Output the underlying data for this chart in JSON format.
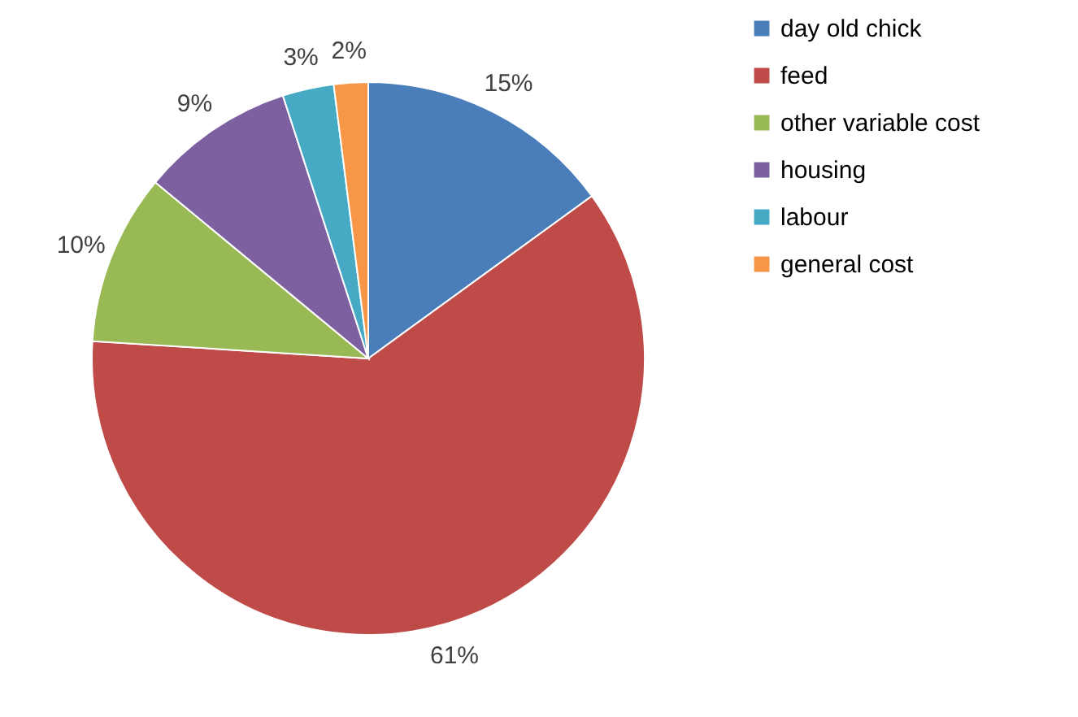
{
  "chart_data": {
    "type": "pie",
    "categories": [
      "day old chick",
      "feed",
      "other variable cost",
      "housing",
      "labour",
      "general cost"
    ],
    "values": [
      15,
      61,
      10,
      9,
      3,
      2
    ],
    "colors": [
      "#4a7ebb",
      "#be4b48",
      "#98b954",
      "#7d60a0",
      "#46aac5",
      "#f79646"
    ],
    "value_labels": [
      "15%",
      "61%",
      "10%",
      "9%",
      "3%",
      "2%"
    ],
    "legend": "right"
  }
}
